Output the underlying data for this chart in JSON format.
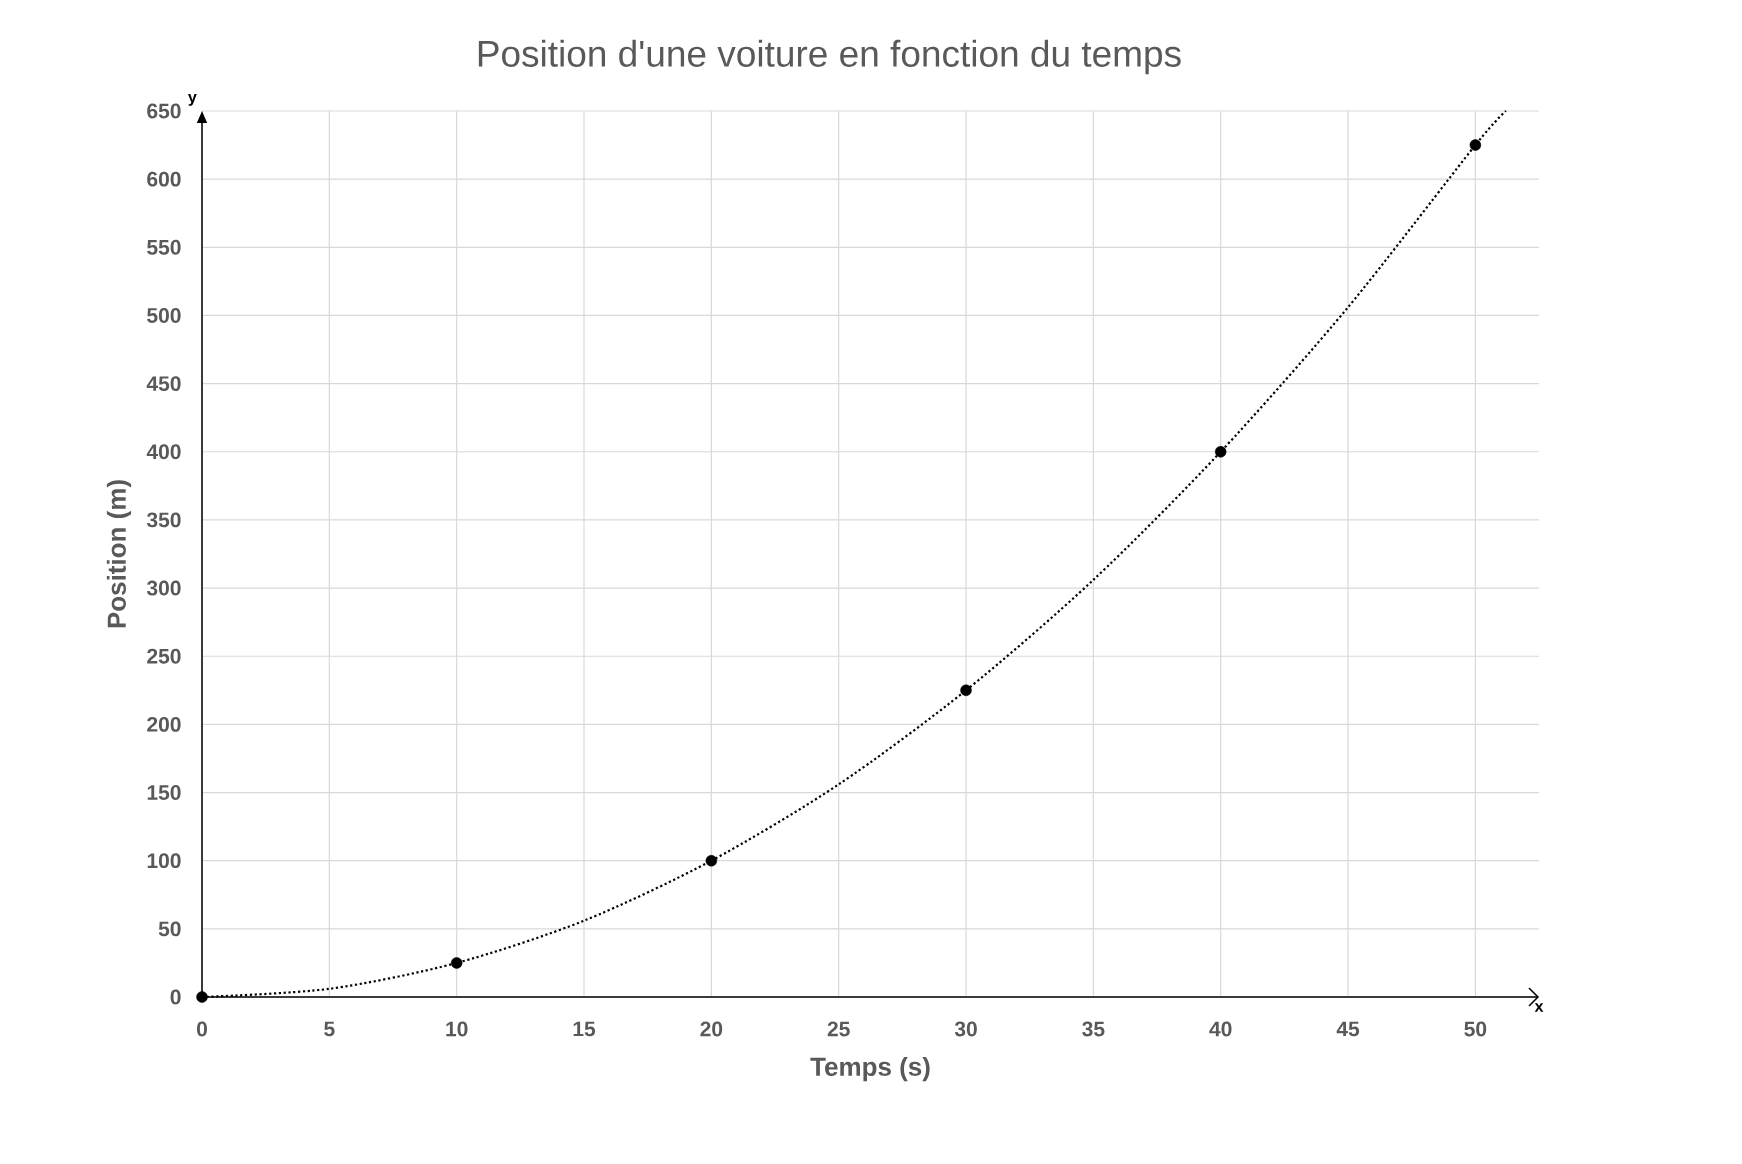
{
  "chart_data": {
    "type": "scatter",
    "title": "Position d'une voiture en fonction du temps",
    "xlabel": "Temps (s)",
    "ylabel": "Position (m)",
    "annotations": [
      "x",
      "y"
    ],
    "xlim": [
      0,
      52.5
    ],
    "ylim": [
      0,
      650
    ],
    "xticks": [
      0,
      5,
      10,
      15,
      20,
      25,
      30,
      35,
      40,
      45,
      50
    ],
    "yticks": [
      0,
      50,
      100,
      150,
      200,
      250,
      300,
      350,
      400,
      450,
      500,
      550,
      600,
      650
    ],
    "grid": true,
    "series": [
      {
        "color": "#000000",
        "marker": "circle",
        "x": [
          0,
          10,
          20,
          30,
          40,
          50
        ],
        "values": [
          0,
          25,
          100,
          225,
          400,
          625
        ]
      },
      {
        "type": "line",
        "color": "#000000",
        "marker": "none",
        "line_style": "dotted",
        "x": [
          0,
          5,
          10,
          15,
          20,
          25,
          30,
          35,
          40,
          45,
          50,
          51.2
        ],
        "values": [
          0,
          6,
          25,
          56,
          100,
          156,
          225,
          306,
          400,
          506,
          625,
          650
        ]
      }
    ]
  }
}
